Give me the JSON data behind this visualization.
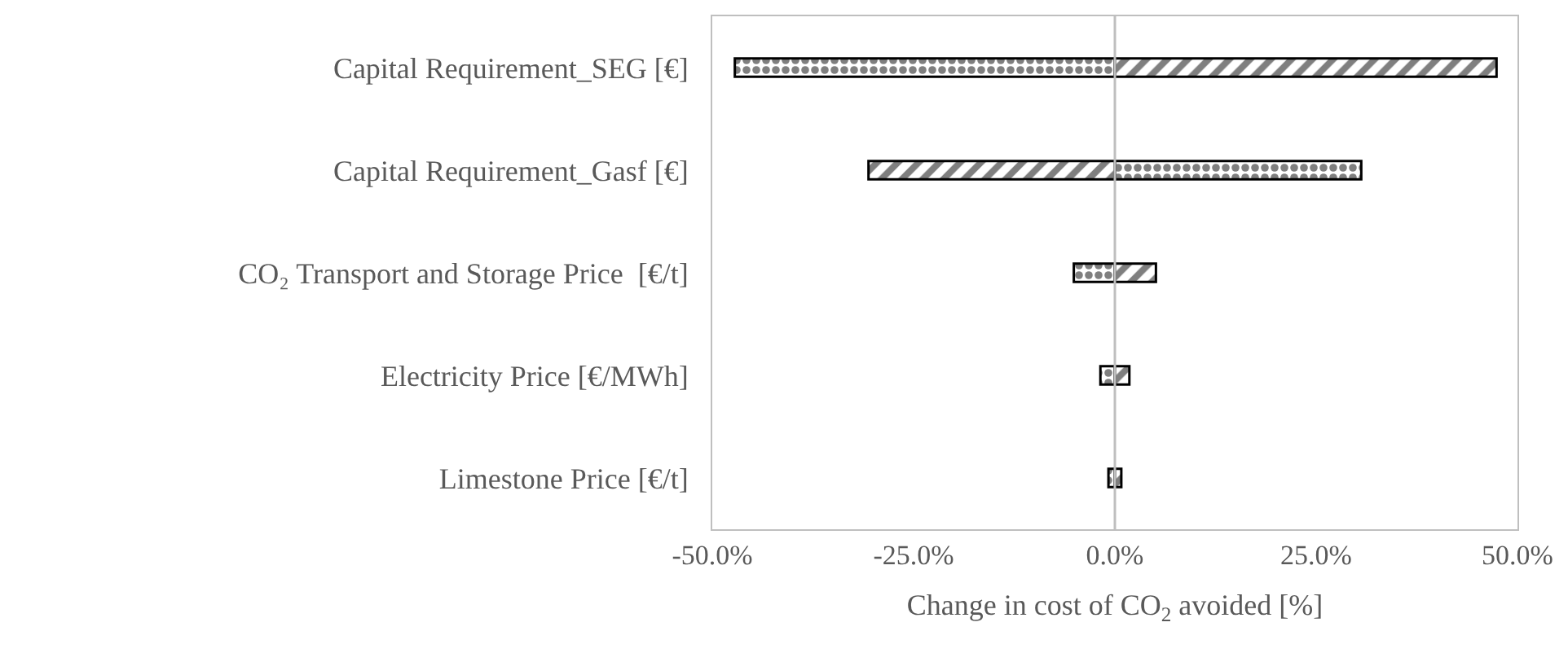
{
  "chart_data": {
    "type": "bar",
    "orientation": "horizontal",
    "xlabel": "Change in cost of CO$_{2}$ avoided [%]",
    "categories": [
      "Capital Requirement_SEG [€]",
      "Capital Requirement_Gasf [€]",
      "CO₂ Transport and Storage Price  [€/t]",
      "Electricity Price [€/MWh]",
      "Limestone Price [€/t]"
    ],
    "series": [
      {
        "color": "#000000",
        "values": [
          -47.2,
          30.6,
          -5.1,
          -1.8,
          -0.8
        ]
      },
      {
        "color": "#000000",
        "values": [
          47.4,
          -30.6,
          5.1,
          1.8,
          0.8
        ]
      }
    ],
    "xlim": [
      -50,
      50
    ],
    "xticks": [
      {
        "value": -50,
        "label": "-50.0%"
      },
      {
        "value": -25,
        "label": "-25.0%"
      },
      {
        "value": 0,
        "label": "0.0%"
      },
      {
        "value": 25,
        "label": "25.0%"
      },
      {
        "value": 50,
        "label": "50.0%"
      }
    ],
    "ref_lines": [
      {
        "axis": "x",
        "value": 0,
        "color": "#bfbfbf"
      }
    ],
    "stacked": true
  }
}
